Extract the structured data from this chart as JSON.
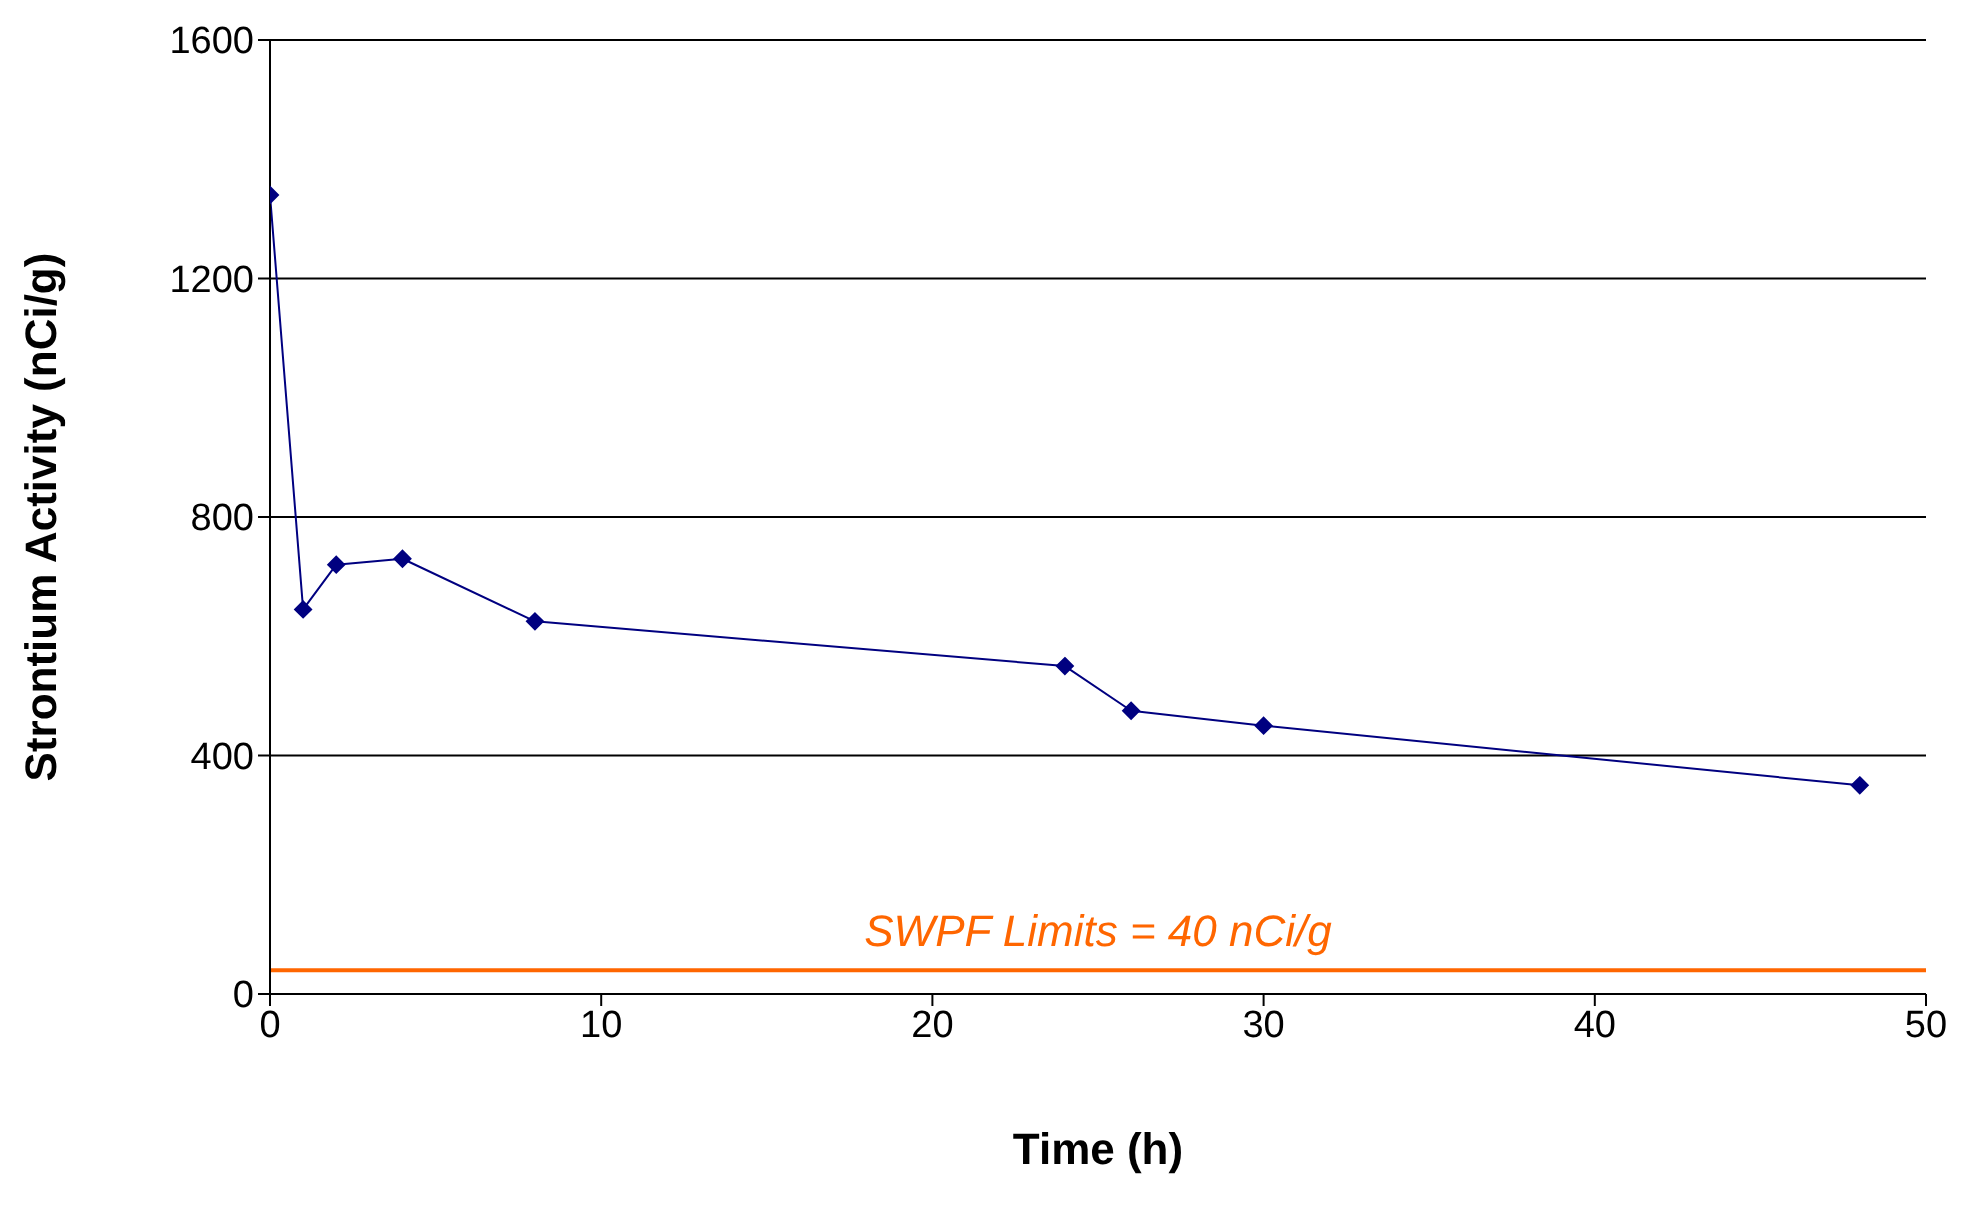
{
  "chart_data": {
    "type": "line",
    "xlabel": "Time (h)",
    "ylabel": "Strontium Activity (nCi/g)",
    "x": [
      0,
      1,
      2,
      4,
      8,
      24,
      26,
      30,
      48
    ],
    "series": [
      {
        "color": "#000080",
        "values": [
          1340,
          645,
          720,
          730,
          625,
          550,
          475,
          450,
          350
        ]
      }
    ],
    "xlim": [
      0,
      50
    ],
    "xticks": [
      0,
      10,
      20,
      30,
      40,
      50
    ],
    "ylim": [
      0,
      1600
    ],
    "yticks": [
      0,
      400,
      800,
      1200,
      1600
    ],
    "grid": "y",
    "marker": "diamond",
    "line_style": "solid",
    "ref_lines": [
      {
        "axis": "y",
        "value": 40,
        "label": "SWPF Limits = 40 nCi/g",
        "color": "#ff6600"
      }
    ]
  }
}
